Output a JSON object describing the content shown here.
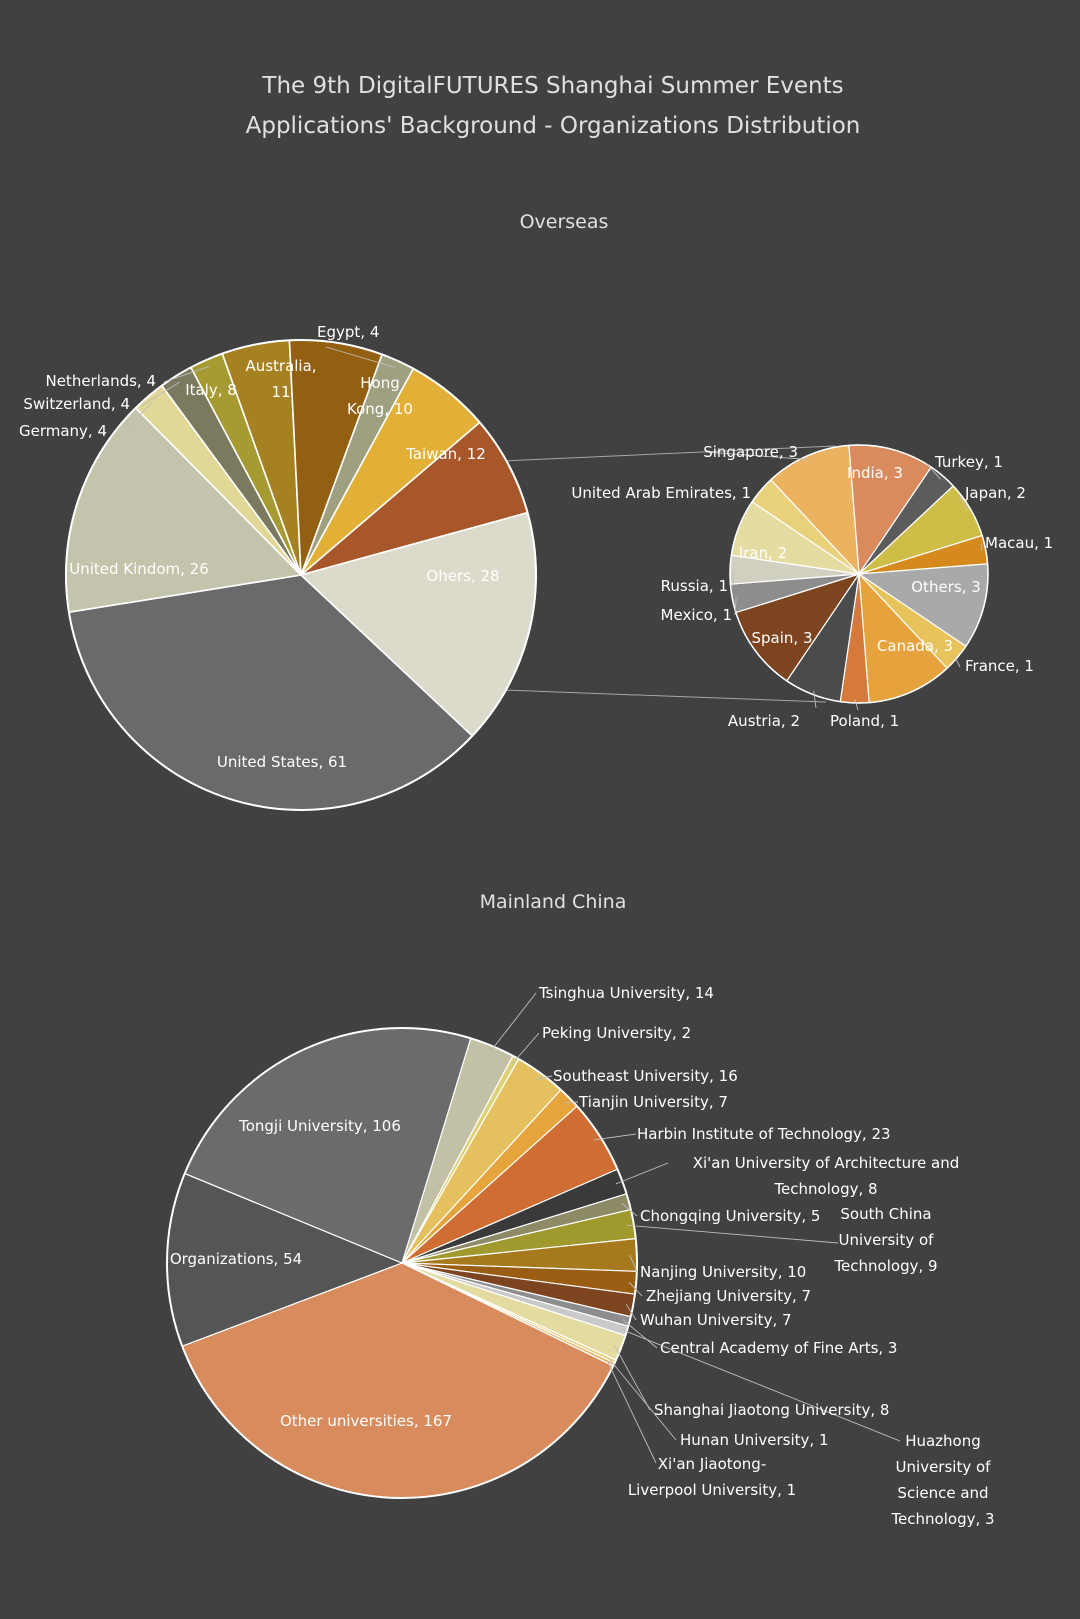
{
  "title_line1": "The 9th DigitalFUTURES Shanghai Summer Events",
  "title_line2": "Applications' Background - Organizations Distribution",
  "chart_data": [
    {
      "type": "pie",
      "title": "Overseas",
      "slices": [
        {
          "label": "Taiwan",
          "value": 12,
          "color": "#a8572a"
        },
        {
          "label": "Ohers",
          "value": 28,
          "color": "#dcdacb"
        },
        {
          "label": "United States",
          "value": 61,
          "color": "#6b6a6b"
        },
        {
          "label": "United Kindom",
          "value": 26,
          "color": "#c4c3ab"
        },
        {
          "label": "Germany",
          "value": 4,
          "color": "#e1d796"
        },
        {
          "label": "Switzerland",
          "value": 4,
          "color": "#7c7a5e"
        },
        {
          "label": "Netherlands",
          "value": 4,
          "color": "#a69a33"
        },
        {
          "label": "Italy",
          "value": 8,
          "color": "#a68122"
        },
        {
          "label": "Australia",
          "value": 11,
          "color": "#935f11"
        },
        {
          "label": "Egypt",
          "value": 4,
          "color": "#9ea080"
        },
        {
          "label": "Hong Kong",
          "value": 10,
          "color": "#e2b037"
        }
      ]
    },
    {
      "type": "pie",
      "title": "",
      "slices": [
        {
          "label": "India",
          "value": 3,
          "color": "#d98b5e"
        },
        {
          "label": "Turkey",
          "value": 1,
          "color": "#5c5c5c"
        },
        {
          "label": "Japan",
          "value": 2,
          "color": "#cebe48"
        },
        {
          "label": "Macau",
          "value": 1,
          "color": "#d68a1e"
        },
        {
          "label": "Others",
          "value": 3,
          "color": "#a9a9a9"
        },
        {
          "label": "France",
          "value": 1,
          "color": "#e8c25a"
        },
        {
          "label": "Canada",
          "value": 3,
          "color": "#e6a23c"
        },
        {
          "label": "Poland",
          "value": 1,
          "color": "#d57a3a"
        },
        {
          "label": "Austria",
          "value": 2,
          "color": "#4b4b4b"
        },
        {
          "label": "Spain",
          "value": 3,
          "color": "#7d4420"
        },
        {
          "label": "Mexico",
          "value": 1,
          "color": "#8d8d8d"
        },
        {
          "label": "Russia",
          "value": 1,
          "color": "#d2d0c0"
        },
        {
          "label": "Iran",
          "value": 2,
          "color": "#e5dca2"
        },
        {
          "label": "United Arab Emirates",
          "value": 1,
          "color": "#e9d07a"
        },
        {
          "label": "Singapore",
          "value": 3,
          "color": "#ebb260"
        }
      ]
    },
    {
      "type": "pie",
      "title": "Mainland China",
      "slices": [
        {
          "label": "Tsinghua University",
          "value": 14,
          "color": "#c2c0a5"
        },
        {
          "label": "Peking University",
          "value": 2,
          "color": "#ddd178"
        },
        {
          "label": "Southeast University",
          "value": 16,
          "color": "#e5c05e"
        },
        {
          "label": "Tianjin University",
          "value": 7,
          "color": "#e5a43c"
        },
        {
          "label": "Harbin Institute of Technology",
          "value": 23,
          "color": "#cf6d33"
        },
        {
          "label": "Xi'an University of Architecture and Technology",
          "value": 8,
          "color": "#3a3a3a"
        },
        {
          "label": "Chongqing University",
          "value": 5,
          "color": "#8d8a66"
        },
        {
          "label": "South China University of Technology",
          "value": 9,
          "color": "#a09a2e"
        },
        {
          "label": "Nanjing University",
          "value": 10,
          "color": "#a67a1c"
        },
        {
          "label": "Zhejiang University",
          "value": 7,
          "color": "#9a5d12"
        },
        {
          "label": "Wuhan University",
          "value": 7,
          "color": "#7d4420"
        },
        {
          "label": "Central Academy of Fine Arts",
          "value": 3,
          "color": "#8d8d8d"
        },
        {
          "label": "Huazhong University of Science and Technology",
          "value": 3,
          "color": "#c9c9c9"
        },
        {
          "label": "Shanghai Jiaotong University",
          "value": 8,
          "color": "#e3dba0"
        },
        {
          "label": "Hunan University",
          "value": 1,
          "color": "#e6d07a"
        },
        {
          "label": "Xi'an Jiaotong-Liverpool University",
          "value": 1,
          "color": "#e8b468"
        },
        {
          "label": "Other universities",
          "value": 167,
          "color": "#d88b5c"
        },
        {
          "label": "Organizations",
          "value": 54,
          "color": "#555555"
        },
        {
          "label": "Tongji University",
          "value": 106,
          "color": "#6c6b6c"
        }
      ]
    }
  ]
}
